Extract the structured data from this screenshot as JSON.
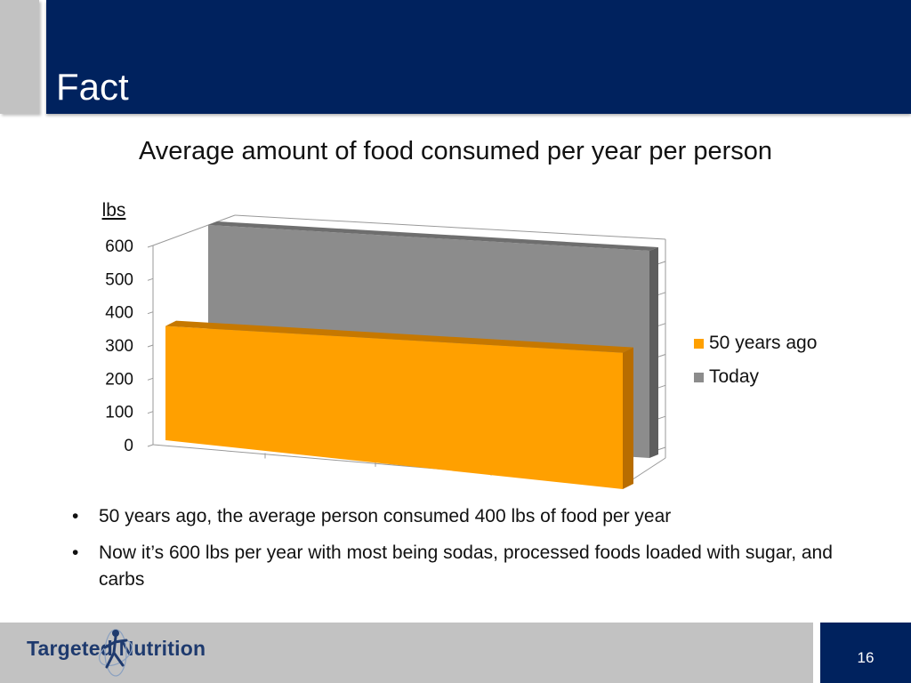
{
  "slide": {
    "title": "Fact",
    "page_number": "16"
  },
  "logo": {
    "text": "Targeted Nutrition",
    "icon": "running-figure-icon"
  },
  "bullets": [
    "50 years ago, the average person consumed 400 lbs of food per year",
    "Now it’s 600 lbs per year with most being sodas, processed foods loaded with sugar, and carbs"
  ],
  "colors": {
    "title_bar": "#00225e",
    "accent_gray": "#c2c2c2",
    "series_50_years_ago": "#ffa000",
    "series_today": "#8c8c8c"
  },
  "chart_data": {
    "type": "bar",
    "title": "Average amount of food consumed per year per person",
    "ylabel": "lbs",
    "xlabel": "",
    "ylim": [
      0,
      600
    ],
    "yticks": [
      "0",
      "100",
      "200",
      "300",
      "400",
      "500",
      "600"
    ],
    "categories": [
      ""
    ],
    "series": [
      {
        "name": "50 years ago",
        "values": [
          400
        ]
      },
      {
        "name": "Today",
        "values": [
          600
        ]
      }
    ],
    "legend_position": "right",
    "style": "3d"
  }
}
